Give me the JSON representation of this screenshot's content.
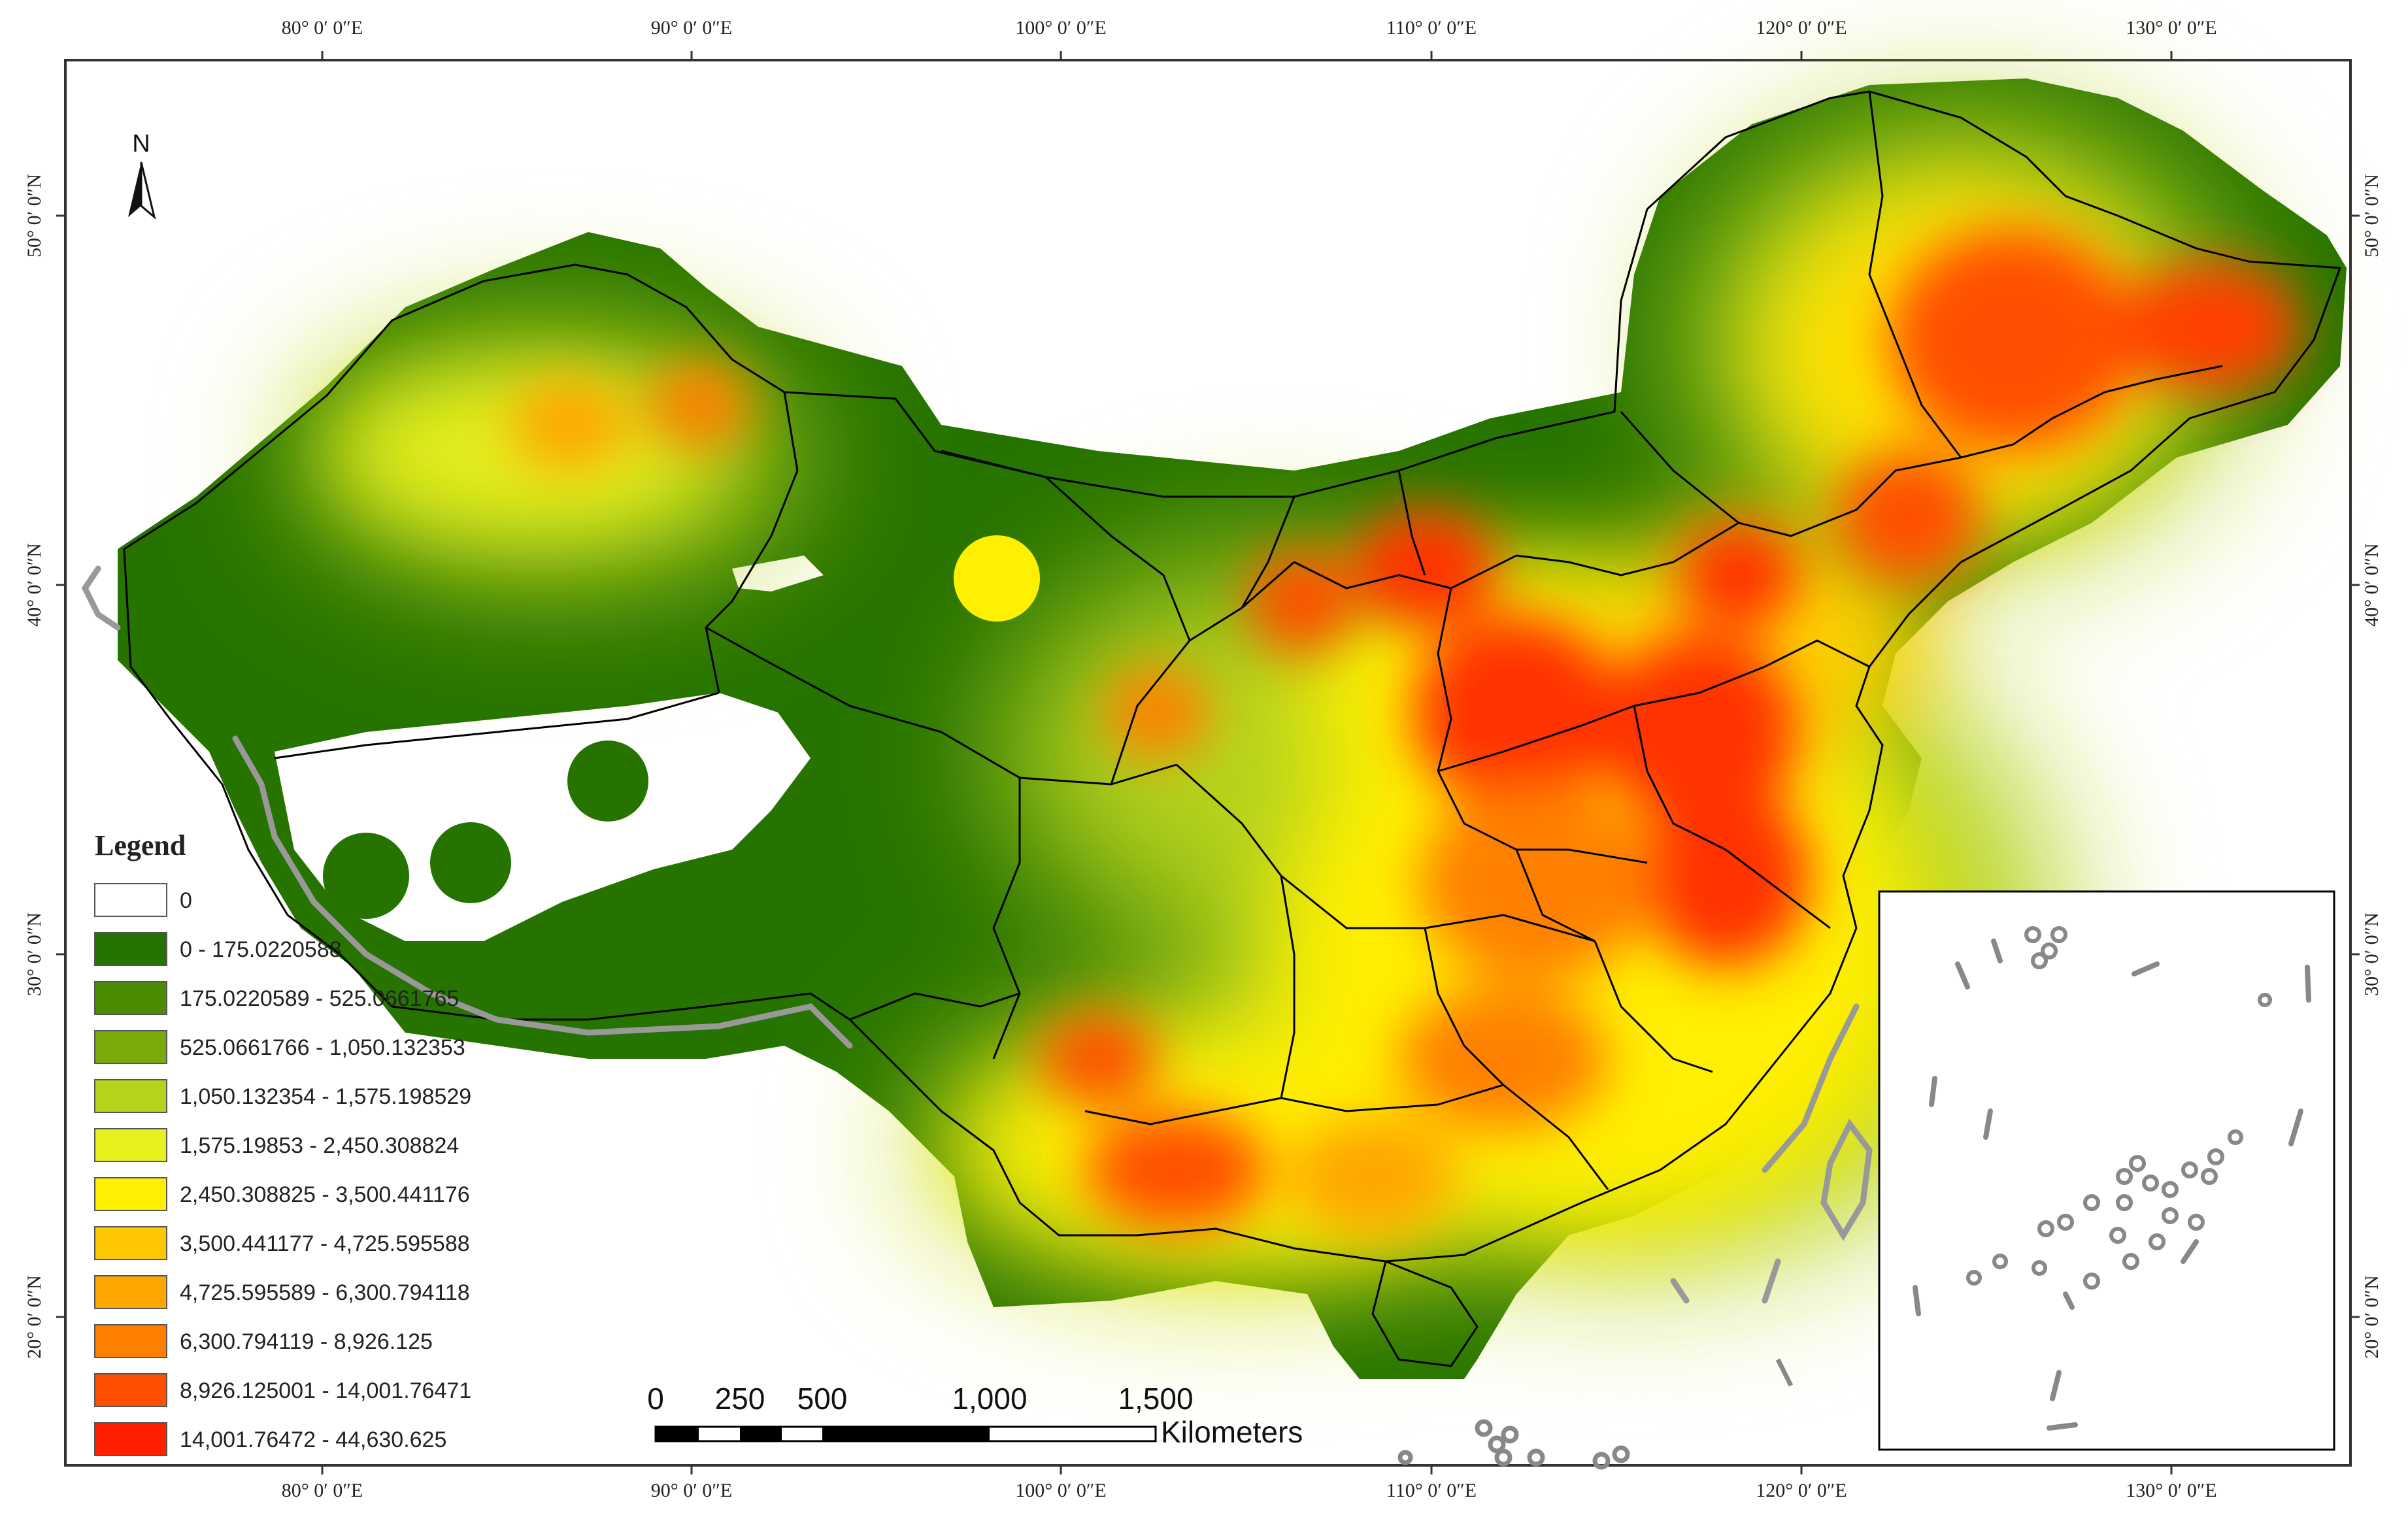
{
  "map": {
    "top_ticks": [
      "80° 0′ 0″E",
      "90° 0′ 0″E",
      "100° 0′ 0″E",
      "110° 0′ 0″E",
      "120° 0′ 0″E",
      "130° 0′ 0″E"
    ],
    "bottom_ticks": [
      "80° 0′ 0″E",
      "90° 0′ 0″E",
      "100° 0′ 0″E",
      "110° 0′ 0″E",
      "120° 0′ 0″E",
      "130° 0′ 0″E"
    ],
    "left_ticks": [
      "50° 0′ 0″N",
      "40° 0′ 0″N",
      "30° 0′ 0″N",
      "20° 0′ 0″N"
    ],
    "right_ticks": [
      "50° 0′ 0″N",
      "40° 0′ 0″N",
      "30° 0′ 0″N",
      "20° 0′ 0″N"
    ],
    "north_label": "N",
    "north_icon": "north-arrow-icon"
  },
  "legend": {
    "title": "Legend",
    "classes": [
      {
        "label": "0",
        "color": "#ffffff"
      },
      {
        "label": "0 - 175.0220588",
        "color": "#267300"
      },
      {
        "label": "175.0220589 - 525.0661765",
        "color": "#4c8c00"
      },
      {
        "label": "525.0661766 - 1,050.132353",
        "color": "#7aab0a"
      },
      {
        "label": "1,050.132354 - 1,575.198529",
        "color": "#b5d31a"
      },
      {
        "label": "1,575.19853 - 2,450.308824",
        "color": "#e8f01e"
      },
      {
        "label": "2,450.308825 - 3,500.441176",
        "color": "#ffef00"
      },
      {
        "label": "3,500.441177 - 4,725.595588",
        "color": "#ffc800"
      },
      {
        "label": "4,725.595589 - 6,300.794118",
        "color": "#ffa600"
      },
      {
        "label": "6,300.794119 - 8,926.125",
        "color": "#ff8000"
      },
      {
        "label": "8,926.125001 - 14,001.76471",
        "color": "#ff5000"
      },
      {
        "label": "14,001.76472 - 44,630.625",
        "color": "#ff2000"
      }
    ]
  },
  "scale_bar": {
    "ticks": [
      "0",
      "250",
      "500",
      "1,000",
      "1,500"
    ],
    "unit": "Kilometers"
  }
}
